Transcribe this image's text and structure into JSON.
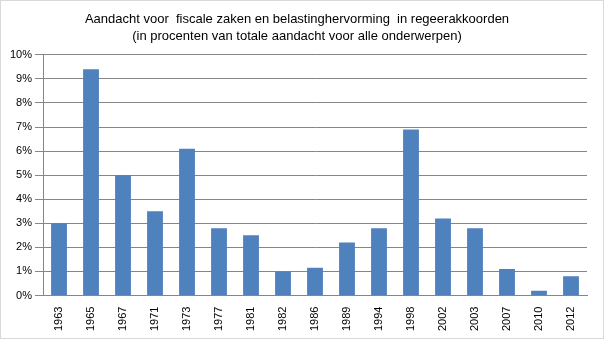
{
  "chart_data": {
    "type": "bar",
    "title": [
      "Aandacht voor  fiscale zaken en belastinghervorming  in regeerakkoorden",
      "(in procenten van totale aandacht voor alle onderwerpen)"
    ],
    "categories": [
      "1963",
      "1965",
      "1967",
      "1971",
      "1973",
      "1977",
      "1981",
      "1982",
      "1986",
      "1989",
      "1994",
      "1998",
      "2002",
      "2003",
      "2007",
      "2010",
      "2012"
    ],
    "values": [
      3.0,
      9.4,
      5.0,
      3.5,
      6.1,
      2.8,
      2.5,
      1.0,
      1.15,
      2.2,
      2.8,
      6.9,
      3.2,
      2.8,
      1.1,
      0.2,
      0.8
    ],
    "color": "#4f81bd",
    "ylim": [
      0,
      10
    ],
    "yticks": [
      {
        "value": 0,
        "label": "0%"
      },
      {
        "value": 1,
        "label": "1%"
      },
      {
        "value": 2,
        "label": "2%"
      },
      {
        "value": 3,
        "label": "3%"
      },
      {
        "value": 4,
        "label": "4%"
      },
      {
        "value": 5,
        "label": "5%"
      },
      {
        "value": 6,
        "label": "6%"
      },
      {
        "value": 7,
        "label": "7%"
      },
      {
        "value": 8,
        "label": "8%"
      },
      {
        "value": 9,
        "label": "9%"
      },
      {
        "value": 10,
        "label": "10%"
      }
    ],
    "grid": true
  }
}
